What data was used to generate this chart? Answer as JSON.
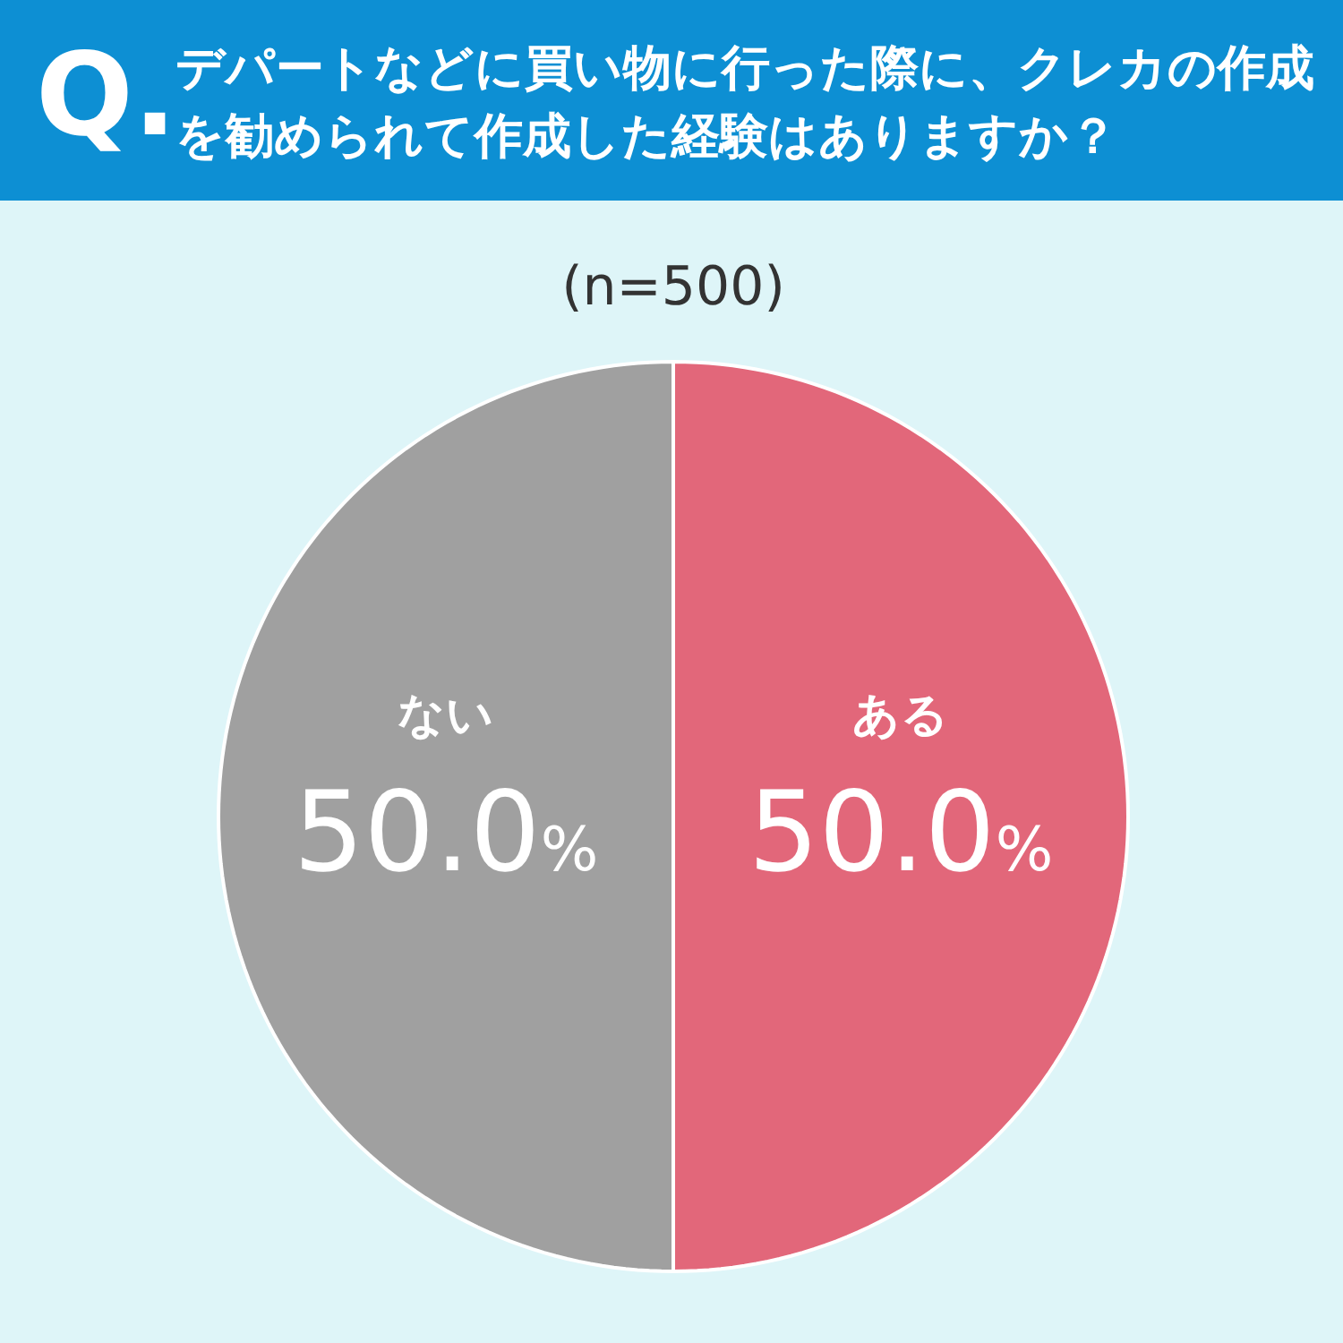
{
  "chart_data": {
    "type": "pie",
    "title": "デパートなどに買い物に行った際に、クレカの作成を勧められて作成した経験はありますか？",
    "subtitle": "(n=500)",
    "annotations": [
      "Q."
    ],
    "categories": [
      "ある",
      "ない"
    ],
    "values": [
      50,
      50
    ],
    "colors": [
      "#e2677a",
      "#a0a0a0"
    ],
    "value_labels": [
      "50.0%",
      "50.0%"
    ]
  }
}
